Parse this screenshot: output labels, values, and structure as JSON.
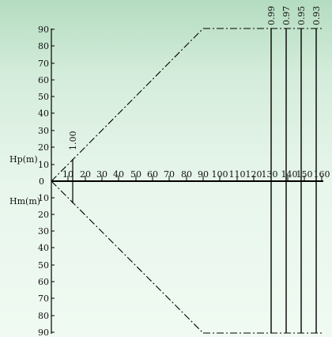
{
  "axis_labels": {
    "upper": "Hp(m)",
    "lower": "Hm(m)"
  },
  "origin_label": "0",
  "y_ticks_upper": [
    "10",
    "20",
    "30",
    "40",
    "50",
    "60",
    "70",
    "80",
    "90"
  ],
  "y_ticks_lower": [
    "10",
    "20",
    "30",
    "40",
    "50",
    "60",
    "70",
    "80",
    "90"
  ],
  "x_ticks": [
    "10",
    "20",
    "30",
    "40",
    "50",
    "60",
    "70",
    "80",
    "90",
    "100",
    "110",
    "120",
    "130",
    "140",
    "150",
    "160"
  ],
  "vertical_line_labels": [
    {
      "x": 15,
      "label": "1.00"
    },
    {
      "x": 130,
      "label": "0.99"
    },
    {
      "x": 139,
      "label": "0.97"
    },
    {
      "x": 148,
      "label": "0.95"
    },
    {
      "x": 157,
      "label": "0.93"
    }
  ],
  "envelope": {
    "slope_points": [
      [
        0,
        0
      ],
      [
        90,
        90
      ],
      [
        157,
        90
      ]
    ]
  },
  "colors": {
    "axis": "#000000",
    "background_top": "#b4dcc0",
    "background_bottom": "#f0faf2"
  }
}
